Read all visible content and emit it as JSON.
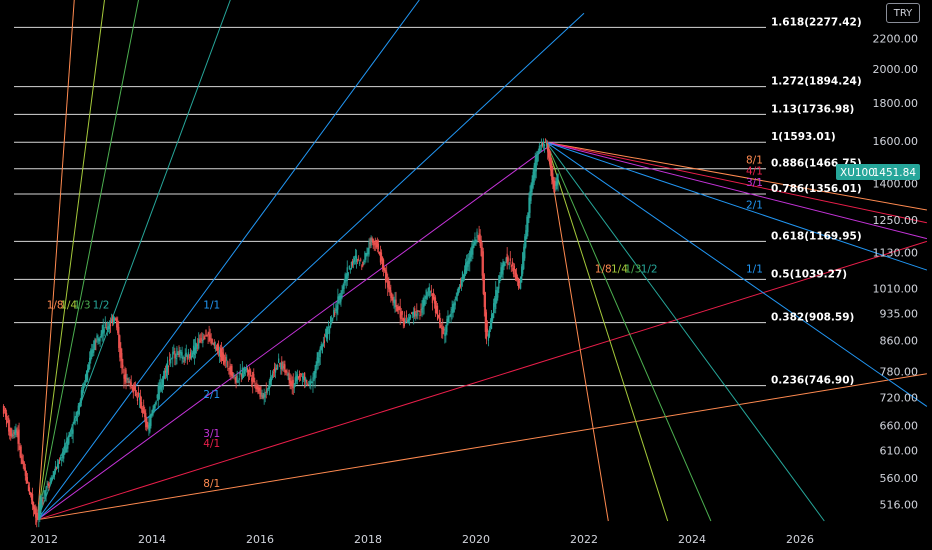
{
  "currency_button": "TRY",
  "price_tag": {
    "symbol": "XU100",
    "value": "1451.84"
  },
  "colors": {
    "background": "#000000",
    "fib_line": "#d8d8d8",
    "up_candle": "#26a69a",
    "down_candle": "#ef5350",
    "price_tag_bg": "#26a69a",
    "fan_blue": "#2196f3",
    "fan_magenta": "#c433d8",
    "fan_red": "#e91e4a",
    "fan_orange": "#ff8a50",
    "fan_yellowgreen": "#a5c93a",
    "fan_green": "#4caf50",
    "fan_teal": "#26a69a"
  },
  "chart_data": {
    "type": "candlestick",
    "symbol": "XU100",
    "currency": "TRY",
    "scale": "log",
    "y_ticks": [
      "516.00",
      "560.00",
      "610.00",
      "660.00",
      "720.00",
      "780.00",
      "860.00",
      "935.00",
      "1010.00",
      "1130.00",
      "1250.00",
      "1400.00",
      "1600.00",
      "1800.00",
      "2000.00",
      "2200.00"
    ],
    "x_ticks": [
      "2012",
      "2014",
      "2016",
      "2018",
      "2020",
      "2022",
      "2024",
      "2026"
    ],
    "ylim": [
      490,
      2480
    ],
    "xlim": [
      2011.25,
      2028.35
    ],
    "last_price": 1451.84,
    "fib_levels": [
      {
        "label": "0.236(746.90)",
        "value": 746.9
      },
      {
        "label": "0.382(908.59)",
        "value": 908.59
      },
      {
        "label": "0.5(1039.27)",
        "value": 1039.27
      },
      {
        "label": "0.618(1169.95)",
        "value": 1169.95
      },
      {
        "label": "0.786(1356.01)",
        "value": 1356.01
      },
      {
        "label": "0.886(1466.75)",
        "value": 1466.75
      },
      {
        "label": "1(1593.01)",
        "value": 1593.01
      },
      {
        "label": "1.13(1736.98)",
        "value": 1736.98
      },
      {
        "label": "1.272(1894.24)",
        "value": 1894.24
      },
      {
        "label": "1.618(2277.42)",
        "value": 2277.42
      }
    ],
    "gann_fan_up": {
      "anchor": {
        "x": 2011.88,
        "y": 492
      },
      "lines": [
        {
          "label": "8/1",
          "color": "#ff8a50",
          "through": {
            "x": 2028.35,
            "y": 775
          },
          "label_at": {
            "x": 2014.95,
            "y": 545
          }
        },
        {
          "label": "4/1",
          "color": "#e91e4a",
          "through": {
            "x": 2028.35,
            "y": 1170
          },
          "label_at": {
            "x": 2014.95,
            "y": 617
          }
        },
        {
          "label": "3/1",
          "color": "#c433d8",
          "through": {
            "x": 2021.45,
            "y": 1593
          },
          "label_at": {
            "x": 2014.95,
            "y": 636
          }
        },
        {
          "label": "2/1",
          "color": "#2196f3",
          "through": {
            "x": 2022.0,
            "y": 2380
          },
          "label_at": {
            "x": 2014.95,
            "y": 718
          }
        },
        {
          "label": "1/1",
          "color": "#2196f3",
          "through": {
            "x": 2018.95,
            "y": 2480
          },
          "label_at": {
            "x": 2014.95,
            "y": 950
          }
        },
        {
          "label": "1/2",
          "color": "#26a69a",
          "through": {
            "x": 2015.45,
            "y": 2480
          },
          "label_at": {
            "x": 2012.9,
            "y": 950
          }
        },
        {
          "label": "1/3",
          "color": "#4caf50",
          "through": {
            "x": 2013.75,
            "y": 2480
          },
          "label_at": {
            "x": 2012.55,
            "y": 950
          }
        },
        {
          "label": "1/4",
          "color": "#a5c93a",
          "through": {
            "x": 2013.12,
            "y": 2480
          },
          "label_at": {
            "x": 2012.3,
            "y": 950
          }
        },
        {
          "label": "1/8",
          "color": "#ff8a50",
          "through": {
            "x": 2012.56,
            "y": 2480
          },
          "label_at": {
            "x": 2012.05,
            "y": 950
          }
        }
      ]
    },
    "gann_fan_down": {
      "anchor": {
        "x": 2021.3,
        "y": 1593
      },
      "lines": [
        {
          "label": "8/1",
          "color": "#ff8a50",
          "through": {
            "x": 2028.35,
            "y": 1290
          },
          "label_at": {
            "x": 2025.0,
            "y": 1492
          }
        },
        {
          "label": "4/1",
          "color": "#e91e4a",
          "through": {
            "x": 2028.35,
            "y": 1240
          },
          "label_at": {
            "x": 2025.0,
            "y": 1440
          }
        },
        {
          "label": "3/1",
          "color": "#c433d8",
          "through": {
            "x": 2028.35,
            "y": 1180
          },
          "label_at": {
            "x": 2025.0,
            "y": 1390
          }
        },
        {
          "label": "2/1",
          "color": "#2196f3",
          "through": {
            "x": 2028.35,
            "y": 1070
          },
          "label_at": {
            "x": 2025.0,
            "y": 1297
          }
        },
        {
          "label": "1/1",
          "color": "#2196f3",
          "through": {
            "x": 2028.35,
            "y": 700
          },
          "label_at": {
            "x": 2025.0,
            "y": 1062
          }
        },
        {
          "label": "1/2",
          "color": "#26a69a",
          "through": {
            "x": 2026.45,
            "y": 490
          },
          "label_at": {
            "x": 2023.05,
            "y": 1062
          }
        },
        {
          "label": "1/3",
          "color": "#4caf50",
          "through": {
            "x": 2024.35,
            "y": 490
          },
          "label_at": {
            "x": 2022.75,
            "y": 1062
          }
        },
        {
          "label": "1/4",
          "color": "#a5c93a",
          "through": {
            "x": 2023.55,
            "y": 490
          },
          "label_at": {
            "x": 2022.5,
            "y": 1062
          }
        },
        {
          "label": "1/8",
          "color": "#ff8a50",
          "through": {
            "x": 2022.45,
            "y": 490
          },
          "label_at": {
            "x": 2022.2,
            "y": 1062
          }
        }
      ]
    },
    "price_path": [
      [
        2011.25,
        700
      ],
      [
        2011.32,
        670
      ],
      [
        2011.4,
        640
      ],
      [
        2011.5,
        655
      ],
      [
        2011.58,
        600
      ],
      [
        2011.65,
        570
      ],
      [
        2011.72,
        545
      ],
      [
        2011.8,
        520
      ],
      [
        2011.88,
        492
      ],
      [
        2011.95,
        515
      ],
      [
        2012.05,
        545
      ],
      [
        2012.15,
        560
      ],
      [
        2012.25,
        580
      ],
      [
        2012.35,
        600
      ],
      [
        2012.45,
        630
      ],
      [
        2012.55,
        660
      ],
      [
        2012.65,
        700
      ],
      [
        2012.75,
        750
      ],
      [
        2012.85,
        800
      ],
      [
        2012.95,
        860
      ],
      [
        2013.05,
        880
      ],
      [
        2013.15,
        895
      ],
      [
        2013.25,
        905
      ],
      [
        2013.32,
        935
      ],
      [
        2013.38,
        880
      ],
      [
        2013.45,
        790
      ],
      [
        2013.55,
        760
      ],
      [
        2013.65,
        745
      ],
      [
        2013.75,
        720
      ],
      [
        2013.85,
        690
      ],
      [
        2013.92,
        650
      ],
      [
        2014.0,
        680
      ],
      [
        2014.1,
        720
      ],
      [
        2014.2,
        760
      ],
      [
        2014.3,
        800
      ],
      [
        2014.4,
        820
      ],
      [
        2014.5,
        830
      ],
      [
        2014.6,
        810
      ],
      [
        2014.7,
        820
      ],
      [
        2014.8,
        840
      ],
      [
        2014.9,
        860
      ],
      [
        2015.0,
        880
      ],
      [
        2015.08,
        870
      ],
      [
        2015.15,
        845
      ],
      [
        2015.25,
        830
      ],
      [
        2015.35,
        810
      ],
      [
        2015.45,
        790
      ],
      [
        2015.55,
        760
      ],
      [
        2015.65,
        770
      ],
      [
        2015.75,
        790
      ],
      [
        2015.85,
        770
      ],
      [
        2015.95,
        745
      ],
      [
        2016.05,
        720
      ],
      [
        2016.15,
        740
      ],
      [
        2016.25,
        780
      ],
      [
        2016.35,
        800
      ],
      [
        2016.45,
        790
      ],
      [
        2016.55,
        770
      ],
      [
        2016.62,
        745
      ],
      [
        2016.72,
        770
      ],
      [
        2016.82,
        765
      ],
      [
        2016.92,
        745
      ],
      [
        2017.0,
        770
      ],
      [
        2017.1,
        820
      ],
      [
        2017.2,
        860
      ],
      [
        2017.3,
        905
      ],
      [
        2017.4,
        940
      ],
      [
        2017.5,
        990
      ],
      [
        2017.6,
        1050
      ],
      [
        2017.7,
        1090
      ],
      [
        2017.8,
        1110
      ],
      [
        2017.9,
        1090
      ],
      [
        2018.0,
        1140
      ],
      [
        2018.08,
        1185
      ],
      [
        2018.15,
        1165
      ],
      [
        2018.25,
        1110
      ],
      [
        2018.35,
        1040
      ],
      [
        2018.45,
        980
      ],
      [
        2018.55,
        950
      ],
      [
        2018.65,
        920
      ],
      [
        2018.75,
        910
      ],
      [
        2018.85,
        940
      ],
      [
        2018.95,
        930
      ],
      [
        2019.05,
        970
      ],
      [
        2019.15,
        1010
      ],
      [
        2019.25,
        960
      ],
      [
        2019.35,
        900
      ],
      [
        2019.42,
        880
      ],
      [
        2019.5,
        920
      ],
      [
        2019.6,
        960
      ],
      [
        2019.7,
        1010
      ],
      [
        2019.8,
        1070
      ],
      [
        2019.9,
        1120
      ],
      [
        2020.0,
        1180
      ],
      [
        2020.05,
        1200
      ],
      [
        2020.12,
        1120
      ],
      [
        2020.2,
        860
      ],
      [
        2020.27,
        900
      ],
      [
        2020.35,
        960
      ],
      [
        2020.45,
        1050
      ],
      [
        2020.55,
        1110
      ],
      [
        2020.65,
        1090
      ],
      [
        2020.75,
        1050
      ],
      [
        2020.82,
        1010
      ],
      [
        2020.9,
        1140
      ],
      [
        2021.0,
        1330
      ],
      [
        2021.08,
        1450
      ],
      [
        2021.15,
        1540
      ],
      [
        2021.22,
        1580
      ],
      [
        2021.3,
        1593
      ],
      [
        2021.35,
        1530
      ],
      [
        2021.42,
        1420
      ],
      [
        2021.47,
        1370
      ],
      [
        2021.52,
        1451.84
      ]
    ]
  }
}
